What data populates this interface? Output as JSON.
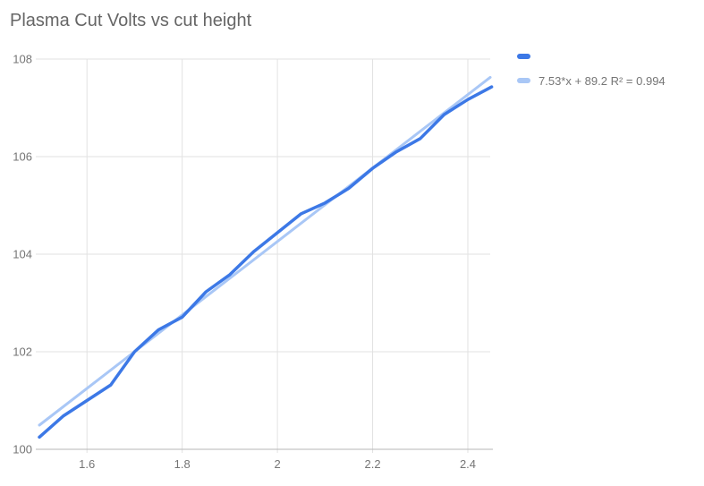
{
  "chart": {
    "title": "Plasma Cut Volts vs cut height",
    "legend": [
      {
        "label": "",
        "color": "#3c78e6"
      },
      {
        "label": "7.53*x + 89.2 R² = 0.994",
        "color": "#a9c7f6"
      }
    ]
  },
  "colors": {
    "background": "#ffffff",
    "title_text": "#666666",
    "tick_label_text": "#757575",
    "legend_text": "#757575",
    "gridline": "#e2e2e2",
    "axis_baseline": "#b7b7b7",
    "series_line": "#3c78e6",
    "trendline": "#a9c7f6"
  },
  "chart_data": {
    "type": "line",
    "title": "Plasma Cut Volts vs cut height",
    "xlabel": "",
    "ylabel": "",
    "xlim": [
      1.5,
      2.447
    ],
    "ylim": [
      100,
      108
    ],
    "x_ticks": [
      1.6,
      1.8,
      2,
      2.2,
      2.4
    ],
    "x_tick_labels": [
      "1.6",
      "1.8",
      "2",
      "2.2",
      "2.4"
    ],
    "y_ticks": [
      100,
      102,
      104,
      106,
      108
    ],
    "y_tick_labels": [
      "100",
      "102",
      "104",
      "106",
      "108"
    ],
    "grid": true,
    "legend_position": "top-right",
    "series": [
      {
        "name": "",
        "role": "data",
        "color": "#3c78e6",
        "stroke_width": 3.5,
        "x": [
          1.5,
          1.55,
          1.6,
          1.65,
          1.7,
          1.75,
          1.8,
          1.85,
          1.9,
          1.95,
          2.0,
          2.05,
          2.1,
          2.15,
          2.2,
          2.25,
          2.3,
          2.35,
          2.4,
          2.45
        ],
        "y": [
          100.25,
          100.68,
          101.0,
          101.32,
          102.0,
          102.45,
          102.71,
          103.23,
          103.58,
          104.05,
          104.44,
          104.83,
          105.05,
          105.35,
          105.76,
          106.1,
          106.37,
          106.86,
          107.17,
          107.43
        ]
      },
      {
        "name": "trendline",
        "role": "trendline",
        "color": "#a9c7f6",
        "stroke_width": 3,
        "equation": "7.53*x + 89.2",
        "r_squared": 0.994,
        "x": [
          1.5,
          2.447
        ],
        "y": [
          100.495,
          107.626
        ]
      }
    ]
  }
}
